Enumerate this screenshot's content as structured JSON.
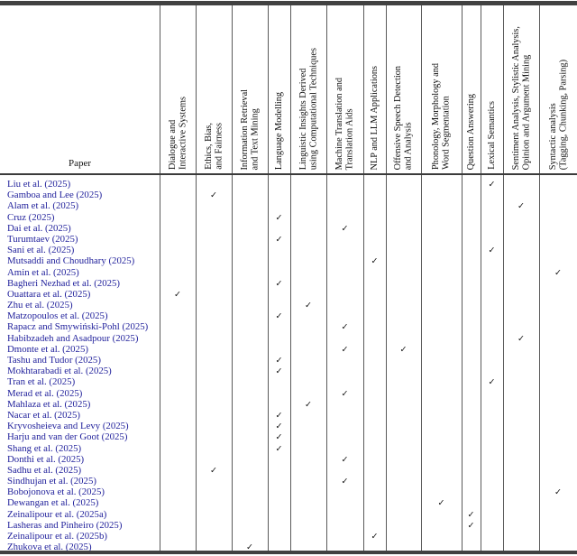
{
  "table": {
    "paper_column_label": "Paper",
    "check_glyph": "✓",
    "link_color": "#22229c",
    "rule_color": "#414141",
    "columns": [
      {
        "id": "dialogue-interactive-systems",
        "lines": [
          "Dialogue and",
          "Interactive Systems"
        ]
      },
      {
        "id": "ethics-bias-fairness",
        "lines": [
          "Ethics, Bias,",
          "and Fairness"
        ]
      },
      {
        "id": "information-retrieval-text-mining",
        "lines": [
          "Information Retrieval",
          "and Text Mining"
        ]
      },
      {
        "id": "language-modelling",
        "lines": [
          "Language Modelling"
        ]
      },
      {
        "id": "linguistic-insights-computational",
        "lines": [
          "Linguistic Insights Derived",
          "using Computational Techniques"
        ]
      },
      {
        "id": "machine-translation-aids",
        "lines": [
          "Machine Translation and",
          "Translation Aids"
        ]
      },
      {
        "id": "nlp-llm-applications",
        "lines": [
          "NLP and LLM Applications"
        ]
      },
      {
        "id": "offensive-speech-detection",
        "lines": [
          "Offensive Speech Detection",
          "and Analysis"
        ]
      },
      {
        "id": "phonology-morphology-segmentation",
        "lines": [
          "Phonology, Morphology and",
          "Word Segmentation"
        ]
      },
      {
        "id": "question-answering",
        "lines": [
          "Question Answering"
        ]
      },
      {
        "id": "lexical-semantics",
        "lines": [
          "Lexical Semantics"
        ]
      },
      {
        "id": "sentiment-stylistic-opinion-argument",
        "lines": [
          "Sentiment Analysis, Stylistic Analysis,",
          "Opinion and Argument Mining"
        ]
      },
      {
        "id": "syntactic-analysis",
        "lines": [
          "Syntactic analysis",
          "(Tagging, Chunking, Parsing)"
        ]
      }
    ],
    "rows": [
      {
        "label": "Liu et al. (2025)",
        "checks": [
          10
        ]
      },
      {
        "label": "Gamboa and Lee (2025)",
        "checks": [
          1
        ]
      },
      {
        "label": "Alam et al. (2025)",
        "checks": [
          11
        ]
      },
      {
        "label": "Cruz (2025)",
        "checks": [
          3
        ]
      },
      {
        "label": "Dai et al. (2025)",
        "checks": [
          5
        ]
      },
      {
        "label": "Turumtaev (2025)",
        "checks": [
          3
        ]
      },
      {
        "label": "Sani et al. (2025)",
        "checks": [
          10
        ]
      },
      {
        "label": "Mutsaddi and Choudhary (2025)",
        "checks": [
          6
        ]
      },
      {
        "label": "Amin et al. (2025)",
        "checks": [
          12
        ]
      },
      {
        "label": "Bagheri Nezhad et al. (2025)",
        "checks": [
          3
        ]
      },
      {
        "label": "Ouattara et al. (2025)",
        "checks": [
          0
        ]
      },
      {
        "label": "Zhu et al. (2025)",
        "checks": [
          4
        ]
      },
      {
        "label": "Matzopoulos et al. (2025)",
        "checks": [
          3
        ]
      },
      {
        "label": "Rapacz and Smywiński-Pohl (2025)",
        "checks": [
          5
        ]
      },
      {
        "label": "Habibzadeh and Asadpour (2025)",
        "checks": [
          11
        ]
      },
      {
        "label": "Dmonte et al. (2025)",
        "checks": [
          5,
          7
        ]
      },
      {
        "label": "Tashu and Tudor (2025)",
        "checks": [
          3
        ]
      },
      {
        "label": "Mokhtarabadi et al. (2025)",
        "checks": [
          3
        ]
      },
      {
        "label": "Tran et al. (2025)",
        "checks": [
          10
        ]
      },
      {
        "label": "Merad et al. (2025)",
        "checks": [
          5
        ]
      },
      {
        "label": "Mahlaza et al. (2025)",
        "checks": [
          4
        ]
      },
      {
        "label": "Nacar et al. (2025)",
        "checks": [
          3
        ]
      },
      {
        "label": "Kryvosheieva and Levy (2025)",
        "checks": [
          3
        ]
      },
      {
        "label": "Harju and van der Goot (2025)",
        "checks": [
          3
        ]
      },
      {
        "label": "Shang et al. (2025)",
        "checks": [
          3
        ]
      },
      {
        "label": "Donthi et al. (2025)",
        "checks": [
          5
        ]
      },
      {
        "label": "Sadhu et al. (2025)",
        "checks": [
          1
        ]
      },
      {
        "label": "Sindhujan et al. (2025)",
        "checks": [
          5
        ]
      },
      {
        "label": "Bobojonova et al. (2025)",
        "checks": [
          12
        ]
      },
      {
        "label": "Dewangan et al. (2025)",
        "checks": [
          8
        ]
      },
      {
        "label": "Zeinalipour et al. (2025a)",
        "checks": [
          9
        ]
      },
      {
        "label": "Lasheras and Pinheiro (2025)",
        "checks": [
          9
        ]
      },
      {
        "label": "Zeinalipour et al. (2025b)",
        "checks": [
          6
        ]
      },
      {
        "label": "Zhukova et al. (2025)",
        "checks": [
          2
        ]
      }
    ]
  }
}
